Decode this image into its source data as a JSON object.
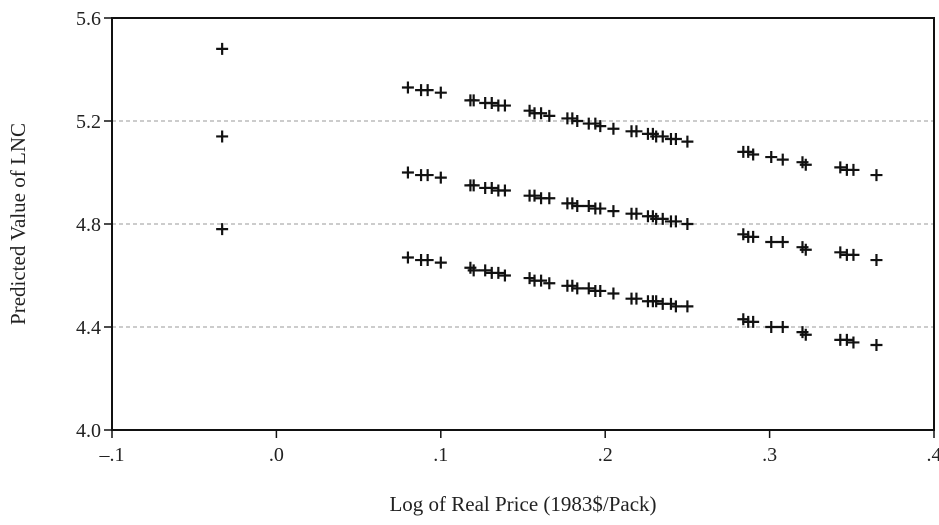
{
  "chart_data": {
    "type": "scatter",
    "title": "",
    "xlabel": "Log of Real Price (1983$/Pack)",
    "ylabel": "Predicted Value of LNC",
    "xlim": [
      -0.1,
      0.4
    ],
    "ylim": [
      4.0,
      5.6
    ],
    "xticks": [
      -0.1,
      0.0,
      0.1,
      0.2,
      0.3,
      0.4
    ],
    "xtick_labels": [
      "–.1",
      ".0",
      ".1",
      ".2",
      ".3",
      ".4"
    ],
    "yticks": [
      4.0,
      4.4,
      4.8,
      5.2,
      5.6
    ],
    "ytick_labels": [
      "4.0",
      "4.4",
      "4.8",
      "5.2",
      "5.6"
    ],
    "grid": "horizontal dashed at 4.4, 4.8, 5.2",
    "marker": "plus",
    "marker_color": "#111111",
    "series": [
      {
        "x": [
          -0.033,
          0.08,
          0.088,
          0.092,
          0.1,
          0.118,
          0.12,
          0.127,
          0.131,
          0.135,
          0.139,
          0.154,
          0.157,
          0.161,
          0.166,
          0.177,
          0.18,
          0.183,
          0.19,
          0.194,
          0.197,
          0.205,
          0.216,
          0.219,
          0.226,
          0.229,
          0.231,
          0.235,
          0.24,
          0.243,
          0.25,
          0.284,
          0.287,
          0.29,
          0.301,
          0.308,
          0.32,
          0.322,
          0.343,
          0.347,
          0.351,
          0.365
        ],
        "y": [
          5.48,
          5.33,
          5.32,
          5.32,
          5.31,
          5.28,
          5.28,
          5.27,
          5.27,
          5.26,
          5.26,
          5.24,
          5.23,
          5.23,
          5.22,
          5.21,
          5.21,
          5.2,
          5.19,
          5.19,
          5.18,
          5.17,
          5.16,
          5.16,
          5.15,
          5.15,
          5.14,
          5.14,
          5.13,
          5.13,
          5.12,
          5.08,
          5.08,
          5.07,
          5.06,
          5.05,
          5.04,
          5.03,
          5.02,
          5.01,
          5.01,
          4.99
        ]
      },
      {
        "x": [
          -0.033,
          0.08,
          0.088,
          0.092,
          0.1,
          0.118,
          0.12,
          0.127,
          0.131,
          0.135,
          0.139,
          0.154,
          0.157,
          0.161,
          0.166,
          0.177,
          0.18,
          0.183,
          0.19,
          0.194,
          0.197,
          0.205,
          0.216,
          0.219,
          0.226,
          0.229,
          0.231,
          0.235,
          0.24,
          0.243,
          0.25,
          0.284,
          0.287,
          0.29,
          0.301,
          0.308,
          0.32,
          0.322,
          0.343,
          0.347,
          0.351,
          0.365
        ],
        "y": [
          5.14,
          5.0,
          4.99,
          4.99,
          4.98,
          4.95,
          4.95,
          4.94,
          4.94,
          4.93,
          4.93,
          4.91,
          4.91,
          4.9,
          4.9,
          4.88,
          4.88,
          4.87,
          4.87,
          4.86,
          4.86,
          4.85,
          4.84,
          4.84,
          4.83,
          4.83,
          4.82,
          4.82,
          4.81,
          4.81,
          4.8,
          4.76,
          4.75,
          4.75,
          4.73,
          4.73,
          4.71,
          4.7,
          4.69,
          4.68,
          4.68,
          4.66
        ]
      },
      {
        "x": [
          -0.033,
          0.08,
          0.088,
          0.092,
          0.1,
          0.118,
          0.12,
          0.127,
          0.131,
          0.135,
          0.139,
          0.154,
          0.157,
          0.161,
          0.166,
          0.177,
          0.18,
          0.183,
          0.19,
          0.194,
          0.197,
          0.205,
          0.216,
          0.219,
          0.226,
          0.229,
          0.231,
          0.235,
          0.24,
          0.243,
          0.25,
          0.284,
          0.287,
          0.29,
          0.301,
          0.308,
          0.32,
          0.322,
          0.343,
          0.347,
          0.351,
          0.365
        ],
        "y": [
          4.78,
          4.67,
          4.66,
          4.66,
          4.65,
          4.63,
          4.62,
          4.62,
          4.61,
          4.61,
          4.6,
          4.59,
          4.58,
          4.58,
          4.57,
          4.56,
          4.56,
          4.55,
          4.55,
          4.54,
          4.54,
          4.53,
          4.51,
          4.51,
          4.5,
          4.5,
          4.5,
          4.49,
          4.49,
          4.48,
          4.48,
          4.43,
          4.42,
          4.42,
          4.4,
          4.4,
          4.38,
          4.37,
          4.35,
          4.35,
          4.34,
          4.33
        ]
      }
    ]
  }
}
